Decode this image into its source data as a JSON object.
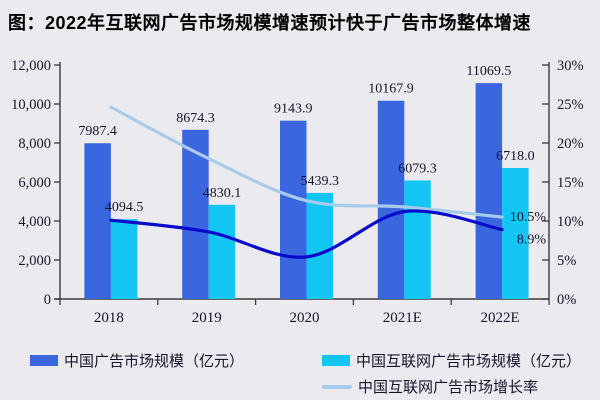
{
  "title": "图：2022年互联网广告市场规模增速预计快于广告市场整体增速",
  "colors": {
    "background": "#EBEBEF",
    "bar_ad_market": "#3A66DF",
    "bar_internet_ad_market": "#12C5F3",
    "line_dark_blue": "#0A0ACA",
    "line_light_blue": "#A7CBEC",
    "axis": "#3a3a3a",
    "label_text": "#14142b"
  },
  "legend": {
    "items": [
      {
        "swatch": "bar",
        "color": "#3A66DF",
        "label": "中国广告市场规模（亿元）"
      },
      {
        "swatch": "bar",
        "color": "#12C5F3",
        "label": "中国互联网广告市场规模（亿元）"
      },
      {
        "swatch": "line",
        "color": "#A7CBEC",
        "label": "中国互联网广告市场增长率"
      }
    ]
  },
  "chart_data": {
    "type": "bar+line combo",
    "categories": [
      "2018",
      "2019",
      "2020",
      "2021E",
      "2022E"
    ],
    "bar_series": [
      {
        "id": "ad-market-size",
        "legend_label": "中国广告市场规模（亿元）",
        "color": "#3A66DF",
        "values": [
          7987.4,
          8674.3,
          9143.9,
          10167.9,
          11069.5
        ],
        "data_labels": [
          "7987.4",
          "8674.3",
          "9143.9",
          "10167.9",
          "11069.5"
        ]
      },
      {
        "id": "internet-ad-market-size",
        "legend_label": "中国互联网广告市场规模（亿元）",
        "color": "#12C5F3",
        "values": [
          4094.5,
          4830.1,
          5439.3,
          6079.3,
          6718.0
        ],
        "data_labels": [
          "4094.5",
          "4830.1",
          "5439.3",
          "6079.3",
          "6718.0"
        ]
      }
    ],
    "line_series": [
      {
        "id": "light-blue-growth-line",
        "legend_label": "中国互联网广告市场增长率",
        "color": "#A7CBEC",
        "axis": "right",
        "values_pct": [
          24.6,
          18.0,
          12.6,
          11.8,
          10.5
        ],
        "end_label": "10.5%"
      },
      {
        "id": "dark-blue-growth-line",
        "legend_label": "",
        "color": "#0A0ACA",
        "axis": "right",
        "values_pct": [
          10.1,
          8.6,
          5.4,
          11.2,
          8.9
        ],
        "end_label": "8.9%"
      }
    ],
    "left_axis": {
      "min": 0,
      "max": 12000,
      "step": 2000,
      "tick_labels": [
        "0",
        "2,000",
        "4,000",
        "6,000",
        "8,000",
        "10,000",
        "12,000"
      ]
    },
    "right_axis": {
      "min": 0,
      "max": 30,
      "step": 5,
      "tick_labels": [
        "0%",
        "5%",
        "10%",
        "15%",
        "20%",
        "25%",
        "30%"
      ]
    },
    "grid": false,
    "legend_position": "bottom"
  }
}
